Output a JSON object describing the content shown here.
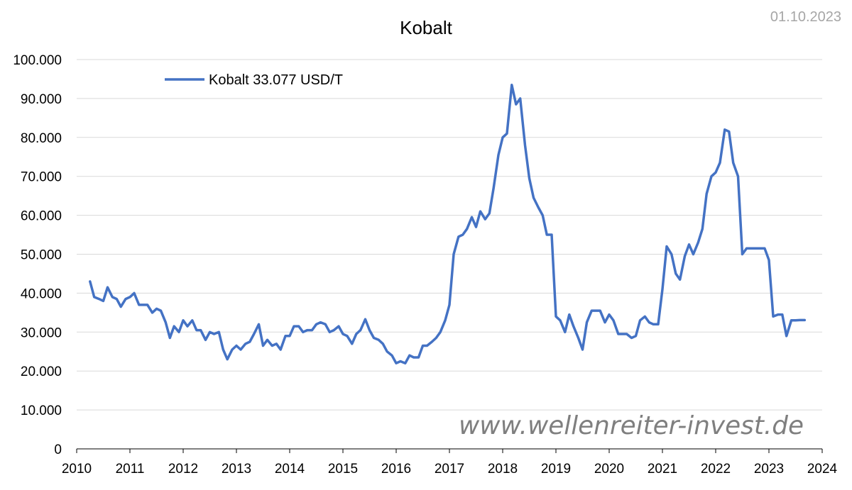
{
  "date_label": "01.10.2023",
  "watermark": "www.wellenreiter-invest.de",
  "colors": {
    "series": "#4472c4",
    "grid": "#d9d9d9",
    "axis": "#000000",
    "date": "#a6a6a6",
    "watermark": "#7f7f7f"
  },
  "chart_data": {
    "type": "line",
    "title": "Kobalt",
    "xlabel": "",
    "ylabel": "",
    "xlim": [
      2010,
      2024
    ],
    "ylim": [
      0,
      100000
    ],
    "x_ticks": [
      "2010",
      "2011",
      "2012",
      "2013",
      "2014",
      "2015",
      "2016",
      "2017",
      "2018",
      "2019",
      "2020",
      "2021",
      "2022",
      "2023",
      "2024"
    ],
    "y_ticks": [
      "0",
      "10.000",
      "20.000",
      "30.000",
      "40.000",
      "50.000",
      "60.000",
      "70.000",
      "80.000",
      "90.000",
      "100.000"
    ],
    "grid": "horizontal",
    "legend": {
      "position": "top-left",
      "entries": [
        "Kobalt 33.077 USD/T"
      ]
    },
    "series": [
      {
        "name": "Kobalt 33.077 USD/T",
        "x": [
          2010.25,
          2010.33,
          2010.42,
          2010.5,
          2010.58,
          2010.67,
          2010.75,
          2010.83,
          2010.92,
          2011.0,
          2011.08,
          2011.17,
          2011.25,
          2011.33,
          2011.42,
          2011.5,
          2011.58,
          2011.67,
          2011.75,
          2011.83,
          2011.92,
          2012.0,
          2012.08,
          2012.17,
          2012.25,
          2012.33,
          2012.42,
          2012.5,
          2012.58,
          2012.67,
          2012.75,
          2012.83,
          2012.92,
          2013.0,
          2013.08,
          2013.17,
          2013.25,
          2013.33,
          2013.42,
          2013.5,
          2013.58,
          2013.67,
          2013.75,
          2013.83,
          2013.92,
          2014.0,
          2014.08,
          2014.17,
          2014.25,
          2014.33,
          2014.42,
          2014.5,
          2014.58,
          2014.67,
          2014.75,
          2014.83,
          2014.92,
          2015.0,
          2015.08,
          2015.17,
          2015.25,
          2015.33,
          2015.42,
          2015.5,
          2015.58,
          2015.67,
          2015.75,
          2015.83,
          2015.92,
          2016.0,
          2016.08,
          2016.17,
          2016.25,
          2016.33,
          2016.42,
          2016.5,
          2016.58,
          2016.67,
          2016.75,
          2016.83,
          2016.92,
          2017.0,
          2017.08,
          2017.17,
          2017.25,
          2017.33,
          2017.42,
          2017.5,
          2017.58,
          2017.67,
          2017.75,
          2017.83,
          2017.92,
          2018.0,
          2018.08,
          2018.17,
          2018.25,
          2018.33,
          2018.42,
          2018.5,
          2018.58,
          2018.67,
          2018.75,
          2018.83,
          2018.92,
          2019.0,
          2019.08,
          2019.17,
          2019.25,
          2019.33,
          2019.42,
          2019.5,
          2019.58,
          2019.67,
          2019.75,
          2019.83,
          2019.92,
          2020.0,
          2020.08,
          2020.17,
          2020.25,
          2020.33,
          2020.42,
          2020.5,
          2020.58,
          2020.67,
          2020.75,
          2020.83,
          2020.92,
          2021.0,
          2021.08,
          2021.17,
          2021.25,
          2021.33,
          2021.42,
          2021.5,
          2021.58,
          2021.67,
          2021.75,
          2021.83,
          2021.92,
          2022.0,
          2022.08,
          2022.17,
          2022.25,
          2022.33,
          2022.42,
          2022.5,
          2022.58,
          2022.67,
          2022.75,
          2022.83,
          2022.92,
          2023.0,
          2023.08,
          2023.17,
          2023.25,
          2023.33,
          2023.42,
          2023.5,
          2023.58,
          2023.67
        ],
        "y": [
          43000,
          39000,
          38500,
          38000,
          41500,
          39000,
          38500,
          36500,
          38500,
          39000,
          40000,
          37000,
          37000,
          37000,
          35000,
          36000,
          35500,
          32500,
          28500,
          31500,
          30000,
          33000,
          31500,
          33000,
          30500,
          30500,
          28000,
          30000,
          29500,
          30000,
          25500,
          23000,
          25500,
          26500,
          25500,
          27000,
          27500,
          29500,
          32000,
          26500,
          28000,
          26500,
          27000,
          25500,
          29000,
          29000,
          31500,
          31500,
          30000,
          30500,
          30500,
          32000,
          32500,
          32000,
          30000,
          30500,
          31500,
          29500,
          29000,
          27000,
          29500,
          30500,
          33300,
          30500,
          28500,
          28000,
          27000,
          25000,
          24000,
          22000,
          22500,
          22000,
          24000,
          23500,
          23500,
          26500,
          26500,
          27500,
          28500,
          30000,
          33000,
          37000,
          50000,
          54500,
          55000,
          56500,
          59500,
          57000,
          61000,
          59000,
          60500,
          67000,
          75500,
          80000,
          81000,
          93500,
          88500,
          90000,
          78000,
          69500,
          64500,
          62000,
          60000,
          55000,
          55000,
          34000,
          33000,
          30000,
          34500,
          31500,
          28500,
          25500,
          32500,
          35500,
          35500,
          35500,
          32500,
          34500,
          33000,
          29500,
          29500,
          29500,
          28500,
          29000,
          33000,
          34000,
          32500,
          32000,
          32000,
          41000,
          52000,
          50000,
          45000,
          43500,
          49500,
          52500,
          50000,
          53000,
          56500,
          65500,
          70000,
          71000,
          73500,
          82000,
          81500,
          73500,
          70000,
          50000,
          51500,
          51500,
          51500,
          51500,
          51500,
          48500,
          34000,
          34500,
          34500,
          29000,
          33000,
          33000,
          33077,
          33077
        ]
      }
    ]
  }
}
